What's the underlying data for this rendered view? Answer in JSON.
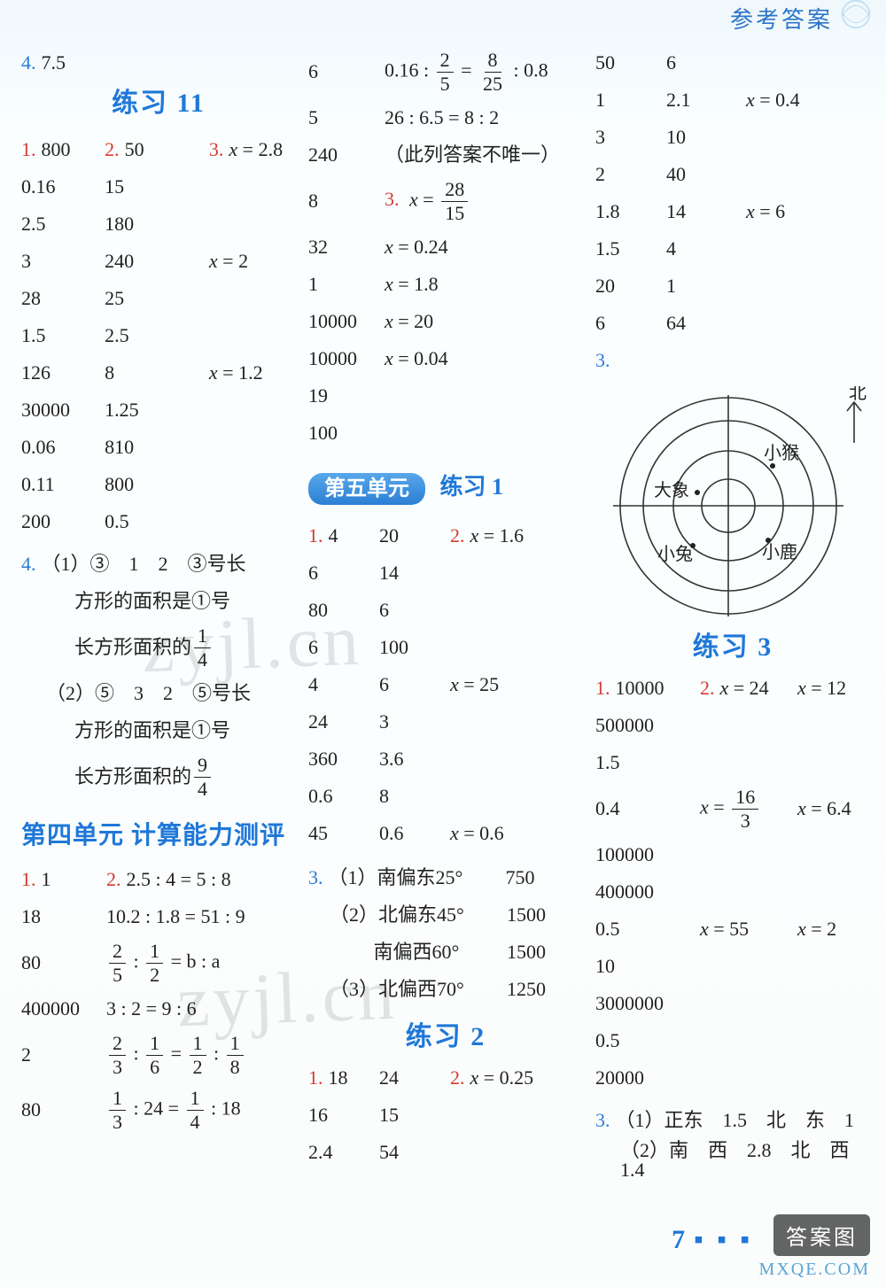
{
  "header": {
    "title": "参考答案"
  },
  "watermark": "zyjl.cn",
  "footer": {
    "caption": "答案图",
    "site": "MXQE.COM",
    "page_number": "7"
  },
  "col1": {
    "pre": {
      "label": "4.",
      "value": "7.5"
    },
    "title": "练习 11",
    "tbl": {
      "labels": {
        "q1": "1.",
        "q2": "2.",
        "q3": "3."
      },
      "rows": [
        {
          "a": "800",
          "b": "50",
          "c": "x = 2.8"
        },
        {
          "a": "0.16",
          "b": "15",
          "c": ""
        },
        {
          "a": "2.5",
          "b": "180",
          "c": ""
        },
        {
          "a": "3",
          "b": "240",
          "c": "x = 2"
        },
        {
          "a": "28",
          "b": "25",
          "c": ""
        },
        {
          "a": "1.5",
          "b": "2.5",
          "c": ""
        },
        {
          "a": "126",
          "b": "8",
          "c": "x = 1.2"
        },
        {
          "a": "30000",
          "b": "1.25",
          "c": ""
        },
        {
          "a": "0.06",
          "b": "810",
          "c": ""
        },
        {
          "a": "0.11",
          "b": "800",
          "c": ""
        },
        {
          "a": "200",
          "b": "0.5",
          "c": ""
        }
      ]
    },
    "q4": {
      "label": "4.",
      "line1a": "（1）③　1　2　③号长",
      "line1b": "方形的面积是①号",
      "line1c_pre": "长方形面积的",
      "line1c_num": "1",
      "line1c_den": "4",
      "line2a": "（2）⑤　3　2　⑤号长",
      "line2b": "方形的面积是①号",
      "line2c_pre": "长方形面积的",
      "line2c_num": "9",
      "line2c_den": "4"
    },
    "unit4_title": "第四单元 计算能力测评",
    "unit4": {
      "labels": {
        "q1": "1.",
        "q2": "2."
      },
      "rows": [
        {
          "a": "1",
          "b": "2.5 : 4 = 5 : 8"
        },
        {
          "a": "18",
          "b": "10.2 : 1.8 = 51 : 9"
        },
        {
          "a": "80",
          "b_frac": {
            "l_num": "2",
            "l_den": "5",
            "op": ":",
            "r_num": "1",
            "r_den": "2",
            "eq": "= b : a"
          }
        },
        {
          "a": "400000",
          "b": "3 : 2 = 9 : 6"
        },
        {
          "a": "2",
          "b_frac2": {
            "a_num": "2",
            "a_den": "3",
            "b_num": "1",
            "b_den": "6",
            "c_num": "1",
            "c_den": "2",
            "d_num": "1",
            "d_den": "8"
          }
        },
        {
          "a": "80",
          "b_frac3": {
            "a_num": "1",
            "a_den": "3",
            "mid": ": 24 =",
            "c_num": "1",
            "c_den": "4",
            "tail": ": 18"
          }
        }
      ]
    }
  },
  "col2": {
    "top": {
      "rows": [
        {
          "a": "6",
          "b_frac": {
            "pre": "0.16 : ",
            "l_num": "2",
            "l_den": "5",
            "mid": " = ",
            "r_num": "8",
            "r_den": "25",
            "post": " : 0.8"
          }
        },
        {
          "a": "5",
          "b": "26 : 6.5 = 8 : 2"
        },
        {
          "a": "240",
          "b": "（此列答案不唯一）"
        },
        {
          "a": "8",
          "q3": "3.",
          "b_fracX": {
            "pre": "x = ",
            "num": "28",
            "den": "15"
          }
        },
        {
          "a": "32",
          "b": "x = 0.24"
        },
        {
          "a": "1",
          "b": "x = 1.8"
        },
        {
          "a": "10000",
          "b": "x = 20"
        },
        {
          "a": "10000",
          "b": "x = 0.04"
        },
        {
          "a": "19",
          "b": ""
        },
        {
          "a": "100",
          "b": ""
        }
      ]
    },
    "unit5_title_pill": "第五单元",
    "unit5_title_tail": "练习 1",
    "p1": {
      "labels": {
        "q1": "1.",
        "q2": "2."
      },
      "rows": [
        {
          "a": "4",
          "b": "20",
          "c": "x = 1.6"
        },
        {
          "a": "6",
          "b": "14",
          "c": ""
        },
        {
          "a": "80",
          "b": "6",
          "c": ""
        },
        {
          "a": "6",
          "b": "100",
          "c": ""
        },
        {
          "a": "4",
          "b": "6",
          "c": "x = 25"
        },
        {
          "a": "24",
          "b": "3",
          "c": ""
        },
        {
          "a": "360",
          "b": "3.6",
          "c": ""
        },
        {
          "a": "0.6",
          "b": "8",
          "c": ""
        },
        {
          "a": "45",
          "b": "0.6",
          "c": "x = 0.6"
        }
      ]
    },
    "q3": {
      "label": "3.",
      "rows": [
        {
          "a": "（1）南偏东25°",
          "b": "750"
        },
        {
          "a": "（2）北偏东45°",
          "b": "1500"
        },
        {
          "a": "　　 南偏西60°",
          "b": "1500"
        },
        {
          "a": "（3）北偏西70°",
          "b": "1250"
        }
      ]
    },
    "p2_title": "练习 2",
    "p2": {
      "labels": {
        "q1": "1.",
        "q2": "2."
      },
      "rows": [
        {
          "a": "18",
          "b": "24",
          "c": "x = 0.25"
        },
        {
          "a": "16",
          "b": "15",
          "c": ""
        },
        {
          "a": "2.4",
          "b": "54",
          "c": ""
        }
      ]
    }
  },
  "col3": {
    "top": {
      "rows": [
        {
          "a": "50",
          "b": "6",
          "c": ""
        },
        {
          "a": "1",
          "b": "2.1",
          "c": "x = 0.4"
        },
        {
          "a": "3",
          "b": "10",
          "c": ""
        },
        {
          "a": "2",
          "b": "40",
          "c": ""
        },
        {
          "a": "1.8",
          "b": "14",
          "c": "x = 6"
        },
        {
          "a": "1.5",
          "b": "4",
          "c": ""
        },
        {
          "a": "20",
          "b": "1",
          "c": ""
        },
        {
          "a": "6",
          "b": "64",
          "c": ""
        }
      ]
    },
    "diagram": {
      "label": "3.",
      "north": "北",
      "labels": {
        "nw": "大象",
        "ne": "小猴",
        "sw": "小兔",
        "se": "小鹿"
      },
      "colors": {
        "stroke": "#333",
        "text": "#222"
      }
    },
    "p3_title": "练习 3",
    "p3": {
      "labels": {
        "q1": "1.",
        "q2": "2."
      },
      "rows": [
        {
          "a": "10000",
          "c1": "x = 24",
          "c2": "x = 12"
        },
        {
          "a": "500000",
          "c1": "",
          "c2": ""
        },
        {
          "a": "1.5",
          "c1": "",
          "c2": ""
        },
        {
          "a": "0.4",
          "c1_frac": {
            "pre": "x = ",
            "num": "16",
            "den": "3"
          },
          "c2": "x = 6.4"
        },
        {
          "a": "100000",
          "c1": "",
          "c2": ""
        },
        {
          "a": "400000",
          "c1": "",
          "c2": ""
        },
        {
          "a": "0.5",
          "c1": "x = 55",
          "c2": "x = 2"
        },
        {
          "a": "10",
          "c1": "",
          "c2": ""
        },
        {
          "a": "3000000",
          "c1": "",
          "c2": ""
        },
        {
          "a": "0.5",
          "c1": "",
          "c2": ""
        },
        {
          "a": "20000",
          "c1": "",
          "c2": ""
        }
      ]
    },
    "q3b": {
      "label": "3.",
      "line1": "（1）正东　1.5　北　东　1",
      "line2": "（2）南　西　2.8　北　西　1.4"
    }
  }
}
